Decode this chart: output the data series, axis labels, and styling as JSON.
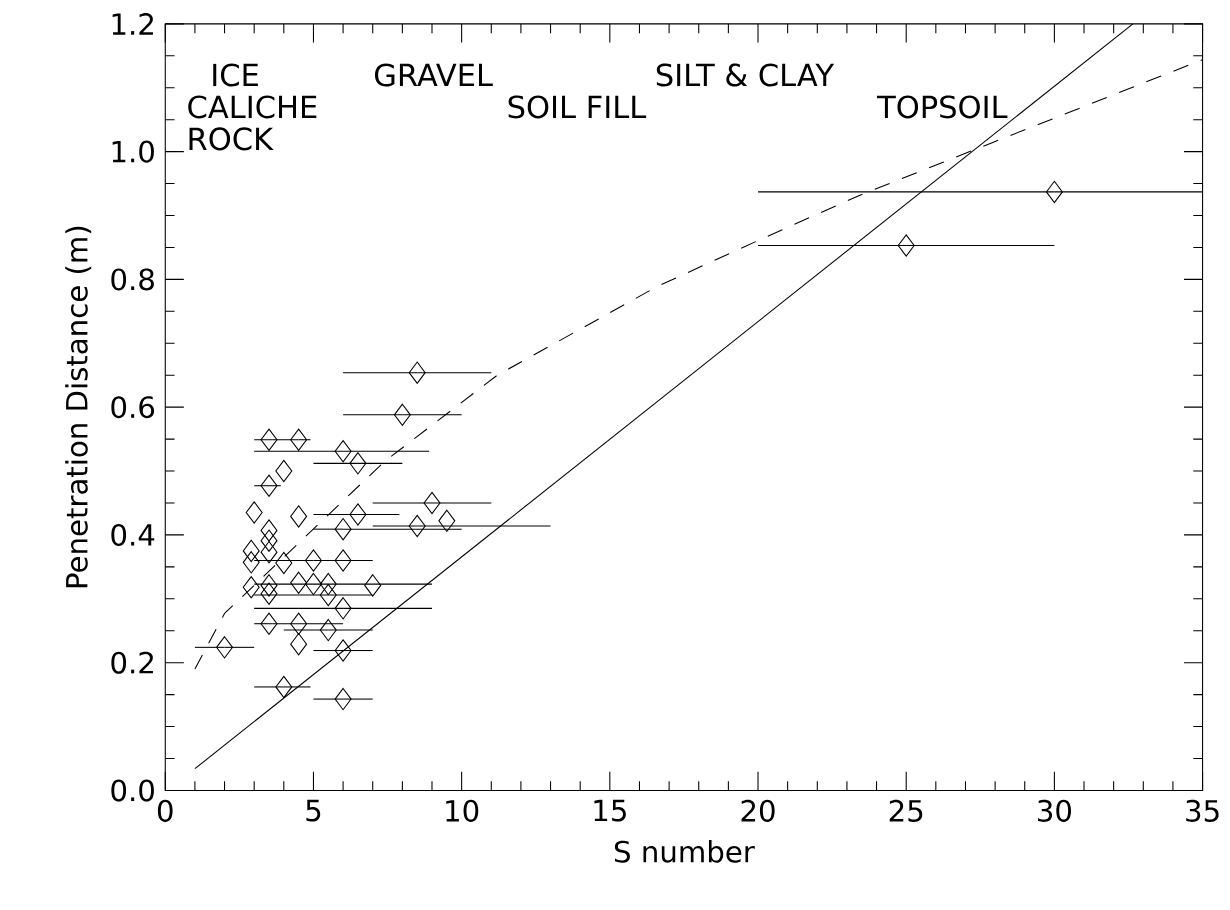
{
  "chart_data": {
    "type": "scatter",
    "xlabel": "S number",
    "ylabel": "Penetration Distance (m)",
    "annotations": [
      "ICE",
      "GRAVEL",
      "SILT & CLAY",
      "CALICHE",
      "SOIL FILL",
      "TOPSOIL",
      "ROCK"
    ],
    "xlim": [
      0,
      35
    ],
    "xticks": [
      0,
      5,
      10,
      15,
      20,
      25,
      30,
      35
    ],
    "ylim": [
      0,
      1.2
    ],
    "yticks": [
      {
        "value": 0,
        "label": "0.0"
      },
      {
        "value": 0.2,
        "label": "0.2"
      },
      {
        "value": 0.4,
        "label": "0.4"
      },
      {
        "value": 0.6,
        "label": "0.6"
      },
      {
        "value": 0.8,
        "label": "0.8"
      },
      {
        "value": 1.0,
        "label": "1.0"
      },
      {
        "value": 1.2,
        "label": "1.2"
      }
    ],
    "grid": false,
    "series": [
      {
        "color": "#000000",
        "marker": "diamond",
        "x": [
          3.5,
          4.5,
          8.5,
          8.0,
          6.0,
          6.5,
          4.0,
          3.5,
          9.0,
          3.0,
          4.5,
          6.5,
          6.0,
          8.5,
          9.5,
          3.5,
          3.5,
          2.9,
          3.5,
          2.9,
          5.0,
          6.0,
          4.0,
          2.9,
          3.5,
          4.5,
          5.0,
          5.5,
          7.0,
          3.5,
          5.5,
          6.0,
          3.5,
          4.5,
          5.5,
          2.0,
          4.5,
          6.0,
          4.0,
          6.0,
          25,
          30
        ],
        "values": [
          0.549,
          0.549,
          0.654,
          0.588,
          0.531,
          0.512,
          0.5,
          0.477,
          0.45,
          0.435,
          0.429,
          0.432,
          0.409,
          0.414,
          0.422,
          0.407,
          0.391,
          0.375,
          0.373,
          0.357,
          0.36,
          0.36,
          0.356,
          0.318,
          0.321,
          0.325,
          0.323,
          0.323,
          0.321,
          0.308,
          0.306,
          0.285,
          0.261,
          0.261,
          0.251,
          0.224,
          0.229,
          0.219,
          0.162,
          0.143,
          0.853,
          0.937
        ],
        "xerrors": [
          null,
          [
            3.0,
            4.9
          ],
          [
            6.0,
            11.0
          ],
          [
            6.0,
            10.0
          ],
          [
            3.0,
            8.9
          ],
          [
            5.0,
            8.0
          ],
          null,
          [
            3.0,
            3.9
          ],
          [
            7.0,
            11.0
          ],
          null,
          null,
          [
            5.0,
            7.9
          ],
          [
            5.0,
            10.0
          ],
          [
            7.0,
            13.0
          ],
          null,
          null,
          null,
          null,
          null,
          null,
          [
            3.0,
            7.0
          ],
          null,
          null,
          null,
          null,
          null,
          null,
          [
            3.0,
            9.0
          ],
          null,
          null,
          [
            3.0,
            7.0
          ],
          [
            3.0,
            9.0
          ],
          [
            3.0,
            6.0
          ],
          null,
          [
            4.0,
            7.0
          ],
          [
            1.0,
            3.0
          ],
          null,
          [
            5.0,
            7.0
          ],
          [
            3.0,
            4.9
          ],
          [
            5.0,
            7.0
          ],
          [
            20,
            30
          ],
          [
            20,
            35
          ]
        ]
      },
      {
        "type": "line",
        "color": "#000000",
        "line_style": "solid",
        "marker": "none",
        "x": [
          1,
          32.65
        ],
        "values": [
          0.034,
          1.2
        ]
      },
      {
        "type": "line",
        "color": "#000000",
        "line_style": "dashed",
        "marker": "none",
        "x": [
          1,
          2,
          7.4,
          11.2,
          16.6,
          20.2,
          23.4,
          27.9,
          35
        ],
        "values": [
          0.19,
          0.277,
          0.515,
          0.65,
          0.789,
          0.865,
          0.931,
          1.014,
          1.144
        ]
      }
    ]
  }
}
